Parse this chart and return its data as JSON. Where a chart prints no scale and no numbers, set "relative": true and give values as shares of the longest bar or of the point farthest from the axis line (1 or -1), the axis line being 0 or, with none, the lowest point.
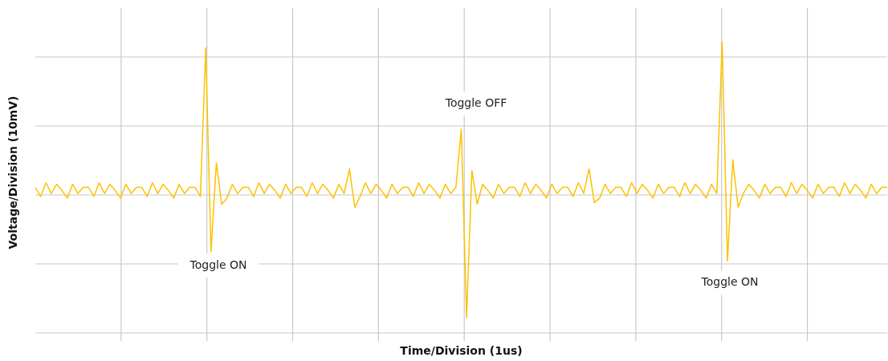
{
  "chart_data": {
    "type": "line",
    "relative": true,
    "xlabel": "Time/Division (1us)",
    "ylabel": "Voltage/Division (10mV)",
    "grid": true,
    "legend": false,
    "marker": "none",
    "line_style": "solid",
    "annotations": [
      "Toggle ON",
      "Toggle OFF",
      "Toggle ON"
    ],
    "categories": [
      null,
      null,
      null,
      null,
      null,
      null,
      null,
      null,
      null,
      null,
      null,
      null,
      null,
      null,
      null,
      null,
      null,
      null,
      null,
      null,
      null,
      null,
      null,
      null,
      null,
      null,
      null,
      null,
      null,
      null,
      null,
      null,
      null,
      null,
      null,
      null,
      null,
      null,
      null,
      null,
      null,
      null,
      null,
      null,
      null,
      null,
      null,
      null,
      null,
      null,
      null,
      null,
      null,
      null,
      null,
      null,
      null,
      null,
      null,
      null,
      null,
      null,
      null,
      null,
      null,
      null,
      null,
      null,
      null,
      null,
      null,
      null,
      null,
      null,
      null,
      null,
      null,
      null,
      null,
      null,
      null,
      null,
      null,
      null,
      null,
      null,
      null,
      null,
      null,
      null,
      null,
      null,
      null,
      null,
      null,
      null,
      null,
      null,
      null,
      null,
      null,
      null,
      null,
      null,
      null,
      null,
      null,
      null,
      null,
      null,
      null,
      null,
      null,
      null,
      null,
      null,
      null,
      null,
      null,
      null,
      null,
      null,
      null,
      null,
      null,
      null,
      null,
      null,
      null,
      null,
      null,
      null,
      null,
      null,
      null,
      null,
      null,
      null,
      null,
      null,
      null,
      null,
      null,
      null,
      null,
      null,
      null,
      null,
      null,
      null,
      null,
      null,
      null,
      null,
      null,
      null,
      null,
      null,
      null,
      null,
      null
    ],
    "series": [
      {
        "color": "#fcc200",
        "values": [
          0.05,
          -0.01,
          0.08,
          0.01,
          0.07,
          0.03,
          -0.02,
          0.07,
          0.01,
          0.05,
          0.05,
          -0.01,
          0.08,
          0.01,
          0.07,
          0.03,
          -0.02,
          0.07,
          0.01,
          0.05,
          0.05,
          -0.01,
          0.08,
          0.01,
          0.07,
          0.03,
          -0.02,
          0.07,
          0.01,
          0.05,
          0.05,
          -0.01,
          0.96,
          -0.37,
          0.21,
          -0.06,
          -0.02,
          0.07,
          0.01,
          0.05,
          0.05,
          -0.01,
          0.08,
          0.01,
          0.07,
          0.03,
          -0.02,
          0.07,
          0.01,
          0.05,
          0.05,
          -0.01,
          0.08,
          0.01,
          0.07,
          0.03,
          -0.02,
          0.07,
          0.01,
          0.17,
          -0.08,
          -0.01,
          0.08,
          0.01,
          0.07,
          0.03,
          -0.02,
          0.07,
          0.01,
          0.05,
          0.05,
          -0.01,
          0.08,
          0.01,
          0.07,
          0.03,
          -0.02,
          0.07,
          0.01,
          0.05,
          0.43,
          -0.8,
          0.16,
          -0.06,
          0.07,
          0.03,
          -0.02,
          0.07,
          0.01,
          0.05,
          0.05,
          -0.01,
          0.08,
          0.01,
          0.07,
          0.03,
          -0.02,
          0.07,
          0.01,
          0.05,
          0.05,
          -0.01,
          0.08,
          0.01,
          0.17,
          -0.05,
          -0.02,
          0.07,
          0.01,
          0.05,
          0.05,
          -0.01,
          0.08,
          0.01,
          0.07,
          0.03,
          -0.02,
          0.07,
          0.01,
          0.05,
          0.05,
          -0.01,
          0.08,
          0.01,
          0.07,
          0.03,
          -0.02,
          0.07,
          0.01,
          1,
          -0.43,
          0.23,
          -0.08,
          0.01,
          0.07,
          0.03,
          -0.02,
          0.07,
          0.01,
          0.05,
          0.05,
          -0.01,
          0.08,
          0.01,
          0.07,
          0.03,
          -0.02,
          0.07,
          0.01,
          0.05,
          0.05,
          -0.01,
          0.08,
          0.01,
          0.07,
          0.03,
          -0.02,
          0.07,
          0.01,
          0.05,
          0.05
        ]
      }
    ]
  }
}
